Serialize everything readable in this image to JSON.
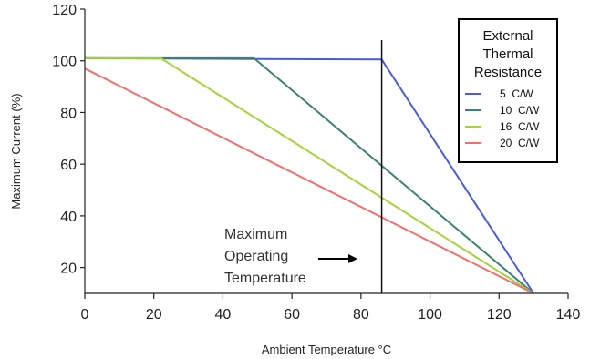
{
  "chart_data": {
    "type": "line",
    "xlabel": "Ambient Temperature °C",
    "ylabel": "Maximum Current (%)",
    "xlim": [
      0,
      140
    ],
    "ylim": [
      10,
      120
    ],
    "x_ticks": [
      0,
      20,
      40,
      60,
      80,
      100,
      120,
      140
    ],
    "y_ticks": [
      20,
      40,
      60,
      80,
      100,
      120
    ],
    "legend": {
      "title": [
        "External",
        "Thermal",
        "Resistance"
      ],
      "placement": "top-right"
    },
    "series": [
      {
        "name": "5  C/W",
        "color": "#4b5bd8",
        "points": [
          [
            0,
            101
          ],
          [
            86,
            100.5
          ],
          [
            130,
            10
          ]
        ]
      },
      {
        "name": "10  C/W",
        "color": "#3c8077",
        "points": [
          [
            0,
            101
          ],
          [
            49,
            101
          ],
          [
            130,
            10
          ]
        ]
      },
      {
        "name": "16  C/W",
        "color": "#a6d23a",
        "points": [
          [
            0,
            101
          ],
          [
            22,
            101
          ],
          [
            130,
            10
          ]
        ]
      },
      {
        "name": "20  C/W",
        "color": "#f07070",
        "points": [
          [
            0,
            97
          ],
          [
            130,
            10
          ]
        ]
      }
    ],
    "vline": {
      "x": 86,
      "label": [
        "Maximum",
        "Operating",
        "Temperature"
      ]
    }
  }
}
